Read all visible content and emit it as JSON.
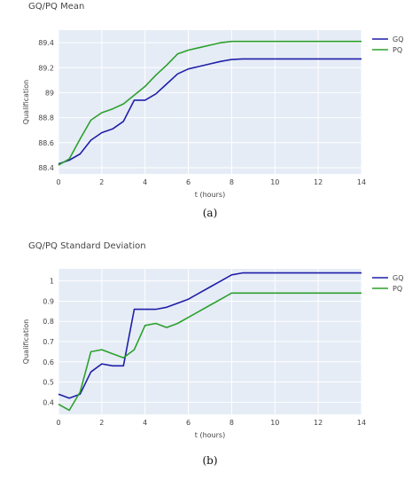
{
  "colors": {
    "plot_bg": "#e5ecf6",
    "grid": "#ffffff",
    "gq": "#1f1fa8",
    "pq": "#2ca02c"
  },
  "chart_data": [
    {
      "type": "line",
      "title": "GQ/PQ Mean",
      "xlabel": "t (hours)",
      "ylabel": "Qualification",
      "xlim": [
        0,
        14
      ],
      "ylim": [
        88.35,
        89.5
      ],
      "xticks": [
        0,
        2,
        4,
        6,
        8,
        10,
        12,
        14
      ],
      "yticks": [
        88.4,
        88.6,
        88.8,
        89,
        89.2,
        89.4
      ],
      "grid": true,
      "legend_position": "top-right",
      "caption": "(a)",
      "series": [
        {
          "name": "GQ",
          "x": [
            0,
            0.5,
            1,
            1.5,
            2,
            2.5,
            3,
            3.5,
            4,
            4.5,
            5,
            5.5,
            6,
            6.5,
            7,
            7.5,
            8,
            8.5,
            14
          ],
          "y": [
            88.43,
            88.46,
            88.51,
            88.62,
            88.68,
            88.71,
            88.77,
            88.94,
            88.94,
            88.99,
            89.07,
            89.15,
            89.19,
            89.21,
            89.23,
            89.25,
            89.265,
            89.27,
            89.27
          ]
        },
        {
          "name": "PQ",
          "x": [
            0,
            0.5,
            1,
            1.5,
            2,
            2.5,
            3,
            3.5,
            4,
            4.5,
            5,
            5.5,
            6,
            6.5,
            7,
            7.5,
            8,
            14
          ],
          "y": [
            88.42,
            88.47,
            88.63,
            88.78,
            88.84,
            88.87,
            88.91,
            88.98,
            89.05,
            89.14,
            89.22,
            89.31,
            89.34,
            89.36,
            89.38,
            89.4,
            89.41,
            89.41
          ]
        }
      ]
    },
    {
      "type": "line",
      "title": "GQ/PQ Standard Deviation",
      "xlabel": "t (hours)",
      "ylabel": "Qualification",
      "xlim": [
        0,
        14
      ],
      "ylim": [
        0.34,
        1.06
      ],
      "xticks": [
        0,
        2,
        4,
        6,
        8,
        10,
        12,
        14
      ],
      "yticks": [
        0.4,
        0.5,
        0.6,
        0.7,
        0.8,
        0.9,
        1
      ],
      "grid": true,
      "legend_position": "top-right",
      "caption": "(b)",
      "series": [
        {
          "name": "GQ",
          "x": [
            0,
            0.5,
            1,
            1.5,
            2,
            2.5,
            3,
            3.5,
            4,
            4.5,
            5,
            5.5,
            6,
            6.5,
            7,
            7.5,
            8,
            8.5,
            14
          ],
          "y": [
            0.44,
            0.42,
            0.44,
            0.55,
            0.59,
            0.58,
            0.58,
            0.86,
            0.86,
            0.86,
            0.87,
            0.89,
            0.91,
            0.94,
            0.97,
            1.0,
            1.03,
            1.04,
            1.04
          ]
        },
        {
          "name": "PQ",
          "x": [
            0,
            0.5,
            1,
            1.5,
            2,
            2.5,
            3,
            3.5,
            4,
            4.5,
            5,
            5.5,
            6,
            6.5,
            7,
            7.5,
            8,
            14
          ],
          "y": [
            0.39,
            0.36,
            0.45,
            0.65,
            0.66,
            0.64,
            0.62,
            0.66,
            0.78,
            0.79,
            0.77,
            0.79,
            0.82,
            0.85,
            0.88,
            0.91,
            0.94,
            0.94
          ]
        }
      ]
    }
  ]
}
